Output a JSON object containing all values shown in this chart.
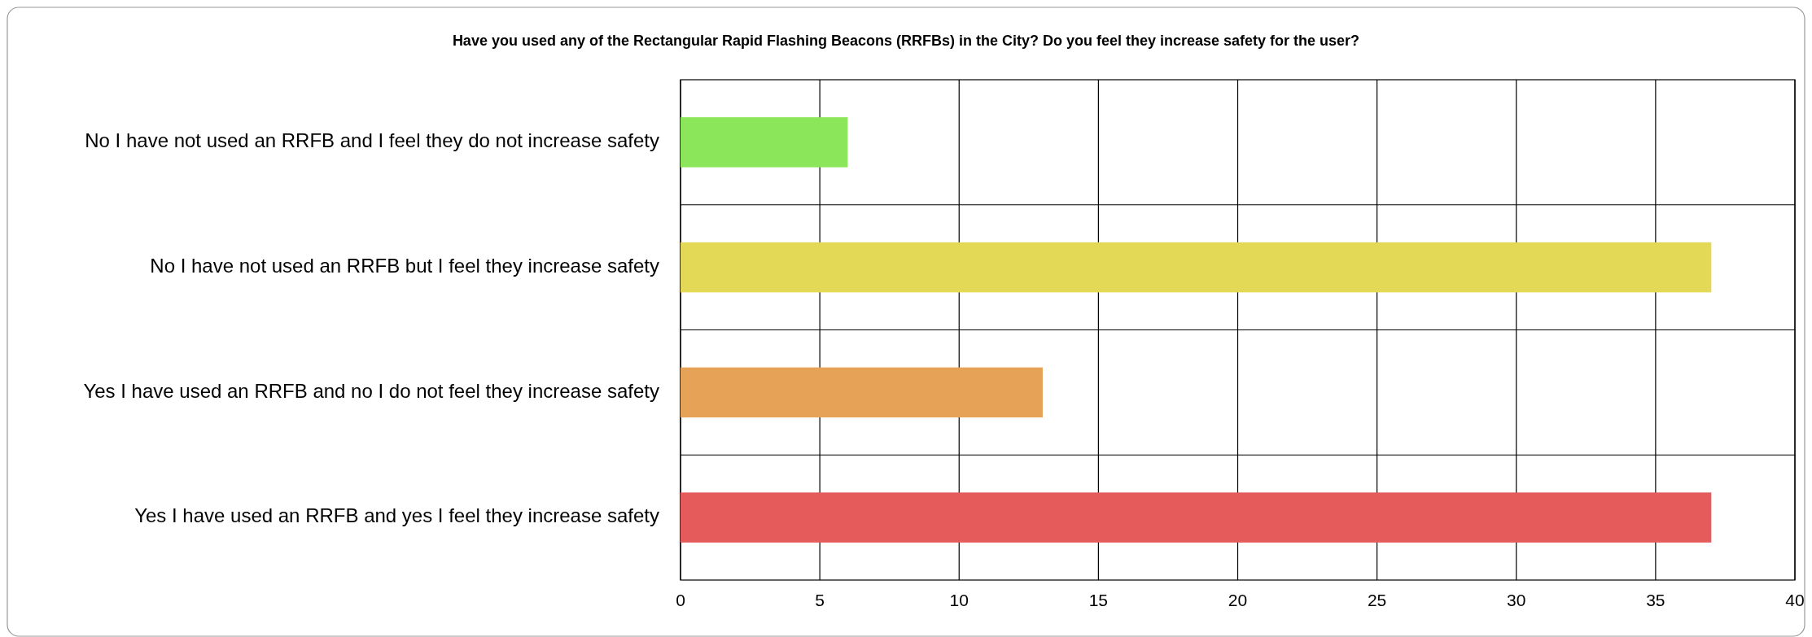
{
  "chart_data": {
    "type": "bar",
    "orientation": "horizontal",
    "title": "Have you used any of the Rectangular Rapid Flashing Beacons (RRFBs) in the City? Do you feel they increase safety for the user?",
    "categories": [
      "No I have not used an RRFB and I feel they do not increase safety",
      "No I have not used an RRFB but I feel they increase safety",
      "Yes I have used an RRFB and no I do not feel they increase safety",
      "Yes I have used an RRFB and yes I feel they increase safety"
    ],
    "values": [
      6,
      37,
      13,
      37
    ],
    "colors": [
      "#8ce65a",
      "#e4d957",
      "#e6a257",
      "#e55a5a"
    ],
    "xlim": [
      0,
      40
    ],
    "xticks": [
      0,
      5,
      10,
      15,
      20,
      25,
      30,
      35,
      40
    ],
    "grid": true
  }
}
